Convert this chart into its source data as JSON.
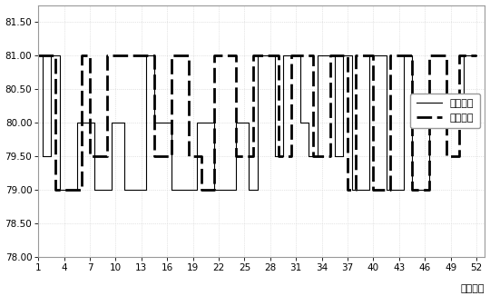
{
  "title": "",
  "xlabel": "（毫秒）",
  "ylim": [
    78.0,
    81.75
  ],
  "yticks": [
    78.0,
    78.5,
    79.0,
    79.5,
    80.0,
    80.5,
    81.0,
    81.5
  ],
  "ytick_labels": [
    "78.00",
    "78.50",
    "79.00",
    "79.50",
    "80.00",
    "80.50",
    "81.00",
    "81.50"
  ],
  "xticks": [
    1,
    4,
    7,
    10,
    13,
    16,
    19,
    22,
    25,
    28,
    31,
    34,
    37,
    40,
    43,
    46,
    49,
    52
  ],
  "xlim": [
    1,
    53
  ],
  "legend_labels": [
    "输入信号",
    "输出信号"
  ],
  "input_signal": [
    1,
    81.0,
    1.5,
    81.0,
    1.5,
    79.5,
    2.5,
    79.5,
    2.5,
    81.0,
    3.5,
    81.0,
    3.5,
    79.0,
    5.5,
    79.0,
    5.5,
    80.0,
    7.5,
    80.0,
    7.5,
    79.0,
    9.5,
    79.0,
    9.5,
    80.0,
    11.0,
    80.0,
    11.0,
    79.0,
    13.5,
    79.0,
    13.5,
    81.0,
    14.5,
    81.0,
    14.5,
    80.0,
    16.5,
    80.0,
    16.5,
    79.0,
    19.5,
    79.0,
    19.5,
    80.0,
    21.5,
    80.0,
    21.5,
    79.0,
    24.0,
    79.0,
    24.0,
    80.0,
    25.5,
    80.0,
    25.5,
    79.0,
    26.5,
    79.0,
    26.5,
    81.0,
    28.5,
    81.0,
    28.5,
    79.5,
    29.5,
    79.5,
    29.5,
    81.0,
    31.5,
    81.0,
    31.5,
    80.0,
    32.5,
    80.0,
    32.5,
    79.5,
    33.5,
    79.5,
    33.5,
    81.0,
    35.5,
    81.0,
    35.5,
    79.5,
    36.5,
    79.5,
    36.5,
    81.0,
    37.5,
    81.0,
    37.5,
    79.0,
    39.5,
    79.0,
    39.5,
    81.0,
    41.5,
    81.0,
    41.5,
    79.0,
    43.5,
    79.0,
    43.5,
    81.0,
    44.5,
    81.0,
    44.5,
    79.0,
    46.5,
    79.0,
    46.5,
    80.0,
    50.5,
    80.0,
    50.5,
    81.0,
    52.0,
    81.0
  ],
  "output_signal": [
    1,
    81.0,
    3.0,
    81.0,
    3.0,
    79.0,
    6.0,
    79.0,
    6.0,
    81.0,
    7.0,
    81.0,
    7.0,
    79.5,
    9.0,
    79.5,
    9.0,
    81.0,
    14.5,
    81.0,
    14.5,
    79.5,
    16.5,
    79.5,
    16.5,
    81.0,
    18.5,
    81.0,
    18.5,
    79.5,
    20.0,
    79.5,
    20.0,
    79.0,
    21.5,
    79.0,
    21.5,
    81.0,
    24.0,
    81.0,
    24.0,
    79.5,
    26.0,
    79.5,
    26.0,
    81.0,
    29.0,
    81.0,
    29.0,
    79.5,
    30.5,
    79.5,
    30.5,
    81.0,
    33.0,
    81.0,
    33.0,
    79.5,
    35.0,
    79.5,
    35.0,
    81.0,
    37.0,
    81.0,
    37.0,
    79.0,
    38.0,
    79.0,
    38.0,
    81.0,
    40.0,
    81.0,
    40.0,
    79.0,
    42.0,
    79.0,
    42.0,
    81.0,
    44.5,
    81.0,
    44.5,
    79.0,
    46.5,
    79.0,
    46.5,
    81.0,
    48.5,
    81.0,
    48.5,
    79.5,
    50.0,
    79.5,
    50.0,
    81.0,
    52.0,
    81.0
  ],
  "bg_color": "#ffffff",
  "plot_bg_color": "#ffffff",
  "line_color": "#000000",
  "grid_color": "#cccccc",
  "border_color": "#999999"
}
